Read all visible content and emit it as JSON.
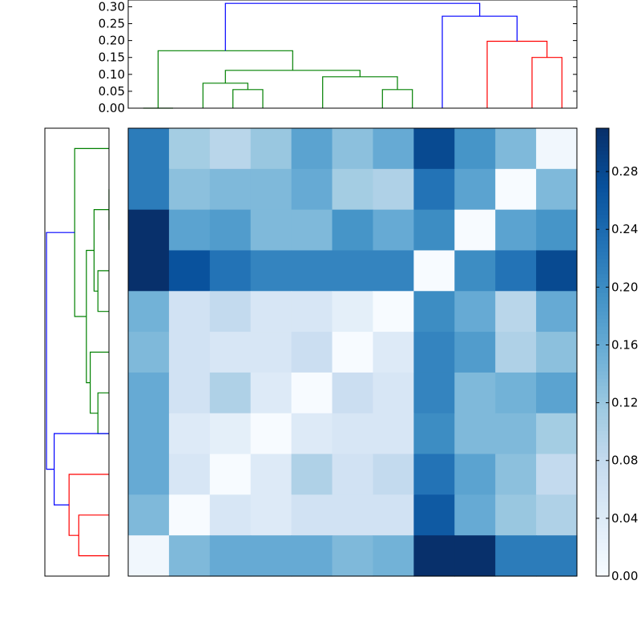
{
  "chart_data": [
    {
      "type": "dendrogram",
      "title": "",
      "orientation": "top",
      "ylim": [
        0,
        0.32
      ],
      "yticks": [
        "0.00",
        "0.05",
        "0.10",
        "0.15",
        "0.20",
        "0.25",
        "0.30"
      ],
      "links": [
        {
          "x": [
            0.5,
            0.5,
            1.5,
            1.5
          ],
          "y": [
            0.0,
            0.0,
            0.0,
            0.0
          ],
          "color": "#008000"
        },
        {
          "x": [
            3.5,
            3.5,
            4.5,
            4.5
          ],
          "y": [
            0.0,
            0.055,
            0.055,
            0.0
          ],
          "color": "#008000"
        },
        {
          "x": [
            2.5,
            2.5,
            4.0,
            4.0
          ],
          "y": [
            0.0,
            0.074,
            0.074,
            0.055
          ],
          "color": "#008000"
        },
        {
          "x": [
            8.5,
            8.5,
            9.5,
            9.5
          ],
          "y": [
            0.0,
            0.055,
            0.055,
            0.0
          ],
          "color": "#008000"
        },
        {
          "x": [
            6.5,
            6.5,
            9.0,
            9.0
          ],
          "y": [
            0.0,
            0.093,
            0.093,
            0.055
          ],
          "color": "#008000"
        },
        {
          "x": [
            3.25,
            3.25,
            7.75,
            7.75
          ],
          "y": [
            0.074,
            0.112,
            0.112,
            0.093
          ],
          "color": "#008000"
        },
        {
          "x": [
            1.0,
            1.0,
            5.5,
            5.5
          ],
          "y": [
            0.0,
            0.17,
            0.17,
            0.112
          ],
          "color": "#008000"
        },
        {
          "x": [
            13.5,
            13.5,
            14.5,
            14.5
          ],
          "y": [
            0.0,
            0.15,
            0.15,
            0.0
          ],
          "color": "#ff0000"
        },
        {
          "x": [
            12.0,
            12.0,
            14.0,
            14.0
          ],
          "y": [
            0.0,
            0.198,
            0.198,
            0.15
          ],
          "color": "#ff0000"
        },
        {
          "x": [
            10.5,
            10.5,
            13.0,
            13.0
          ],
          "y": [
            0.0,
            0.272,
            0.272,
            0.198
          ],
          "color": "#0000ff"
        },
        {
          "x": [
            3.25,
            3.25,
            11.75,
            11.75
          ],
          "y": [
            0.17,
            0.31,
            0.31,
            0.272
          ],
          "color": "#0000ff"
        }
      ]
    },
    {
      "type": "dendrogram",
      "title": "",
      "orientation": "left",
      "rows": 11,
      "links": [
        {
          "y": [
            1.5,
            1.5,
            2.5,
            2.5
          ],
          "x": [
            0.0,
            0.0,
            0.0,
            0.0
          ],
          "color": "#008000"
        },
        {
          "y": [
            3.5,
            3.5,
            4.5,
            4.5
          ],
          "x": [
            0.0,
            0.055,
            0.055,
            0.0
          ],
          "color": "#008000"
        },
        {
          "y": [
            2.0,
            2.0,
            4.0,
            4.0
          ],
          "x": [
            0.0,
            0.074,
            0.074,
            0.055
          ],
          "color": "#008000"
        },
        {
          "y": [
            6.5,
            6.5,
            7.5,
            7.5
          ],
          "x": [
            0.0,
            0.055,
            0.055,
            0.0
          ],
          "color": "#008000"
        },
        {
          "y": [
            5.5,
            5.5,
            7.0,
            7.0
          ],
          "x": [
            0.0,
            0.093,
            0.093,
            0.055
          ],
          "color": "#008000"
        },
        {
          "y": [
            3.0,
            3.0,
            6.25,
            6.25
          ],
          "x": [
            0.074,
            0.112,
            0.112,
            0.093
          ],
          "color": "#008000"
        },
        {
          "y": [
            0.5,
            0.5,
            4.625,
            4.625
          ],
          "x": [
            0.0,
            0.17,
            0.17,
            0.112
          ],
          "color": "#008000"
        },
        {
          "y": [
            9.5,
            9.5,
            10.5,
            10.5
          ],
          "x": [
            0.0,
            0.15,
            0.15,
            0.0
          ],
          "color": "#ff0000"
        },
        {
          "y": [
            8.5,
            8.5,
            10.0,
            10.0
          ],
          "x": [
            0.0,
            0.198,
            0.198,
            0.15
          ],
          "color": "#ff0000"
        },
        {
          "y": [
            7.5,
            7.5,
            9.25,
            9.25
          ],
          "x": [
            0.0,
            0.272,
            0.272,
            0.198
          ],
          "color": "#0000ff"
        },
        {
          "y": [
            2.5625,
            2.5625,
            8.375,
            8.375
          ],
          "x": [
            0.17,
            0.31,
            0.31,
            0.272
          ],
          "color": "#0000ff"
        }
      ]
    },
    {
      "type": "heatmap",
      "title": "",
      "colormap": "Blues",
      "vmin": 0.0,
      "vmax": 0.31,
      "colorbar_ticks": [
        "0.00",
        "0.04",
        "0.08",
        "0.12",
        "0.16",
        "0.20",
        "0.24",
        "0.28"
      ],
      "values": [
        [
          0.22,
          0.11,
          0.09,
          0.12,
          0.17,
          0.13,
          0.16,
          0.28,
          0.19,
          0.14,
          0.01
        ],
        [
          0.22,
          0.13,
          0.14,
          0.14,
          0.16,
          0.11,
          0.1,
          0.23,
          0.17,
          0.0,
          0.14
        ],
        [
          0.31,
          0.17,
          0.18,
          0.14,
          0.14,
          0.19,
          0.16,
          0.2,
          0.0,
          0.17,
          0.19
        ],
        [
          0.31,
          0.27,
          0.23,
          0.21,
          0.21,
          0.21,
          0.21,
          0.0,
          0.2,
          0.23,
          0.28
        ],
        [
          0.15,
          0.06,
          0.08,
          0.05,
          0.05,
          0.03,
          0.0,
          0.2,
          0.16,
          0.09,
          0.16
        ],
        [
          0.14,
          0.06,
          0.05,
          0.05,
          0.07,
          0.0,
          0.04,
          0.21,
          0.18,
          0.1,
          0.13
        ],
        [
          0.16,
          0.06,
          0.1,
          0.04,
          0.0,
          0.07,
          0.05,
          0.21,
          0.14,
          0.15,
          0.17
        ],
        [
          0.16,
          0.04,
          0.03,
          0.0,
          0.04,
          0.05,
          0.05,
          0.2,
          0.14,
          0.14,
          0.11
        ],
        [
          0.16,
          0.05,
          0.0,
          0.04,
          0.1,
          0.06,
          0.08,
          0.23,
          0.17,
          0.13,
          0.08
        ],
        [
          0.14,
          0.0,
          0.05,
          0.04,
          0.06,
          0.06,
          0.06,
          0.26,
          0.16,
          0.12,
          0.1
        ],
        [
          0.01,
          0.14,
          0.16,
          0.16,
          0.16,
          0.14,
          0.15,
          0.31,
          0.31,
          0.22,
          0.22
        ]
      ]
    }
  ]
}
